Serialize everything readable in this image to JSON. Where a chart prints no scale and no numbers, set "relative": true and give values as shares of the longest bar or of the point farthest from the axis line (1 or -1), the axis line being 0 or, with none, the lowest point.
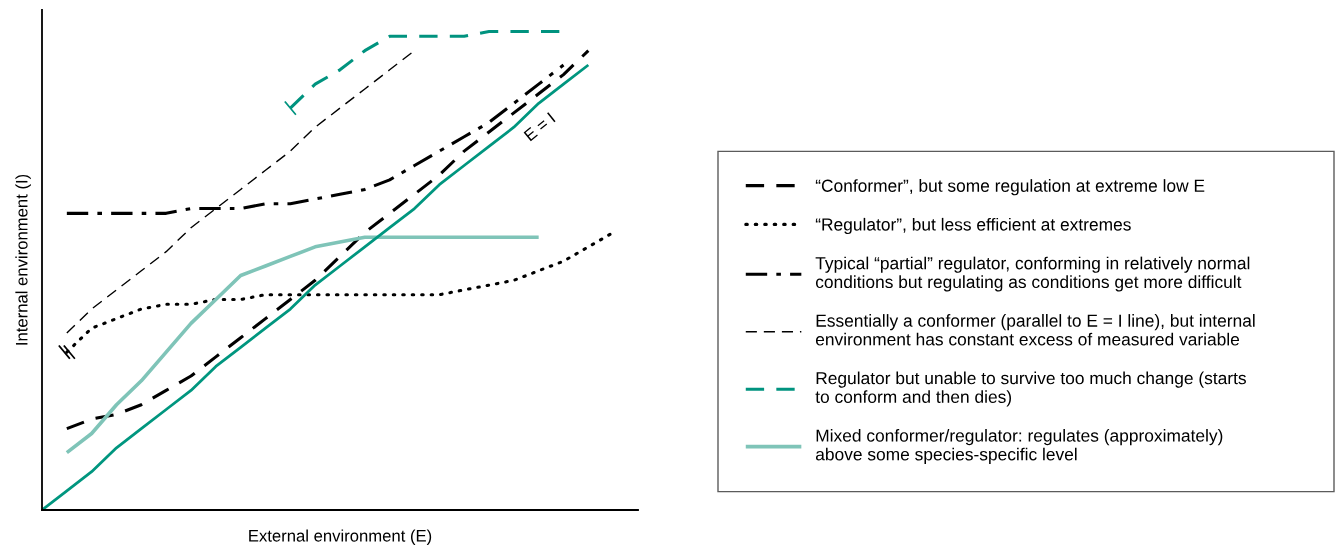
{
  "chart_data": {
    "type": "line",
    "relative": true,
    "xlabel": "External environment (E)",
    "ylabel": "Internal environment (I)",
    "tick_labels": false,
    "legend": "right",
    "marker": "none",
    "categories": [
      null,
      null,
      null,
      null,
      null,
      null,
      null,
      null,
      null,
      null,
      null,
      null,
      null,
      null,
      null,
      null,
      null,
      null,
      null,
      null,
      null,
      null,
      null,
      null,
      null
    ],
    "series": [
      {
        "name": "“Conformer”, but some regulation at extreme low E",
        "color": "#000000",
        "line_style": "dashed",
        "values": [
          null,
          0.17,
          0.19,
          0.2,
          0.22,
          0.25,
          0.28,
          0.32,
          0.36,
          0.4,
          0.44,
          0.48,
          0.53,
          0.58,
          0.62,
          0.66,
          0.7,
          0.75,
          0.79,
          0.83,
          0.87,
          0.91,
          0.96,
          null,
          null
        ]
      },
      {
        "name": "“Regulator”, but less efficient at extremes",
        "color": "#000000",
        "line_style": "dotted",
        "values": [
          null,
          0.33,
          0.38,
          0.4,
          0.42,
          0.43,
          0.43,
          0.44,
          0.44,
          0.45,
          0.45,
          0.45,
          0.45,
          0.45,
          0.45,
          0.45,
          0.45,
          0.46,
          0.47,
          0.48,
          0.5,
          0.52,
          0.55,
          0.58,
          null
        ]
      },
      {
        "name": "Typical “partial” regulator, conforming in relatively normal\nconditions but regulating as conditions get more difficult",
        "color": "#000000",
        "line_style": "dashdot",
        "values": [
          null,
          0.62,
          0.62,
          0.62,
          0.62,
          0.62,
          0.63,
          0.63,
          0.63,
          0.64,
          0.64,
          0.65,
          0.66,
          0.67,
          0.69,
          0.72,
          0.75,
          0.78,
          0.81,
          0.85,
          0.89,
          0.93,
          null,
          null,
          null
        ]
      },
      {
        "name": "Essentially a conformer (parallel to E = I line), but internal\nenvironment has constant excess of measured variable",
        "color": "#000000",
        "line_style": "dashed",
        "values": [
          null,
          0.37,
          0.42,
          0.46,
          0.5,
          0.54,
          0.59,
          0.63,
          0.67,
          0.71,
          0.75,
          0.8,
          0.84,
          0.88,
          0.92,
          0.96,
          null,
          null,
          null,
          null,
          null,
          null,
          null,
          null,
          null
        ]
      },
      {
        "name": "Regulator but unable to survive too much change (starts\nto conform and then dies)",
        "color": "#00937f",
        "line_style": "dashed",
        "values": [
          null,
          null,
          null,
          null,
          null,
          null,
          null,
          null,
          null,
          null,
          0.84,
          0.89,
          0.92,
          0.96,
          0.99,
          0.99,
          0.99,
          0.99,
          1.0,
          1.0,
          1.0,
          1.0,
          null,
          null,
          null
        ]
      },
      {
        "name": "Mixed conformer/regulator: regulates (approximately)\nabove some species-specific level",
        "color": "#7fc4b8",
        "line_style": "solid",
        "values": [
          null,
          0.12,
          0.16,
          0.22,
          0.27,
          0.33,
          0.39,
          0.44,
          0.49,
          0.51,
          0.53,
          0.55,
          0.56,
          0.57,
          0.57,
          0.57,
          0.57,
          0.57,
          0.57,
          0.57,
          0.57,
          null,
          null,
          null,
          null
        ]
      },
      {
        "color": "#00967f",
        "line_style": "solid",
        "values": [
          0,
          0.04,
          0.08,
          0.13,
          0.17,
          0.21,
          0.25,
          0.3,
          0.34,
          0.38,
          0.42,
          0.47,
          0.51,
          0.55,
          0.59,
          0.63,
          0.68,
          0.72,
          0.76,
          0.8,
          0.85,
          0.89,
          0.93,
          null,
          null
        ]
      }
    ],
    "annotations": [
      "E = I"
    ]
  }
}
